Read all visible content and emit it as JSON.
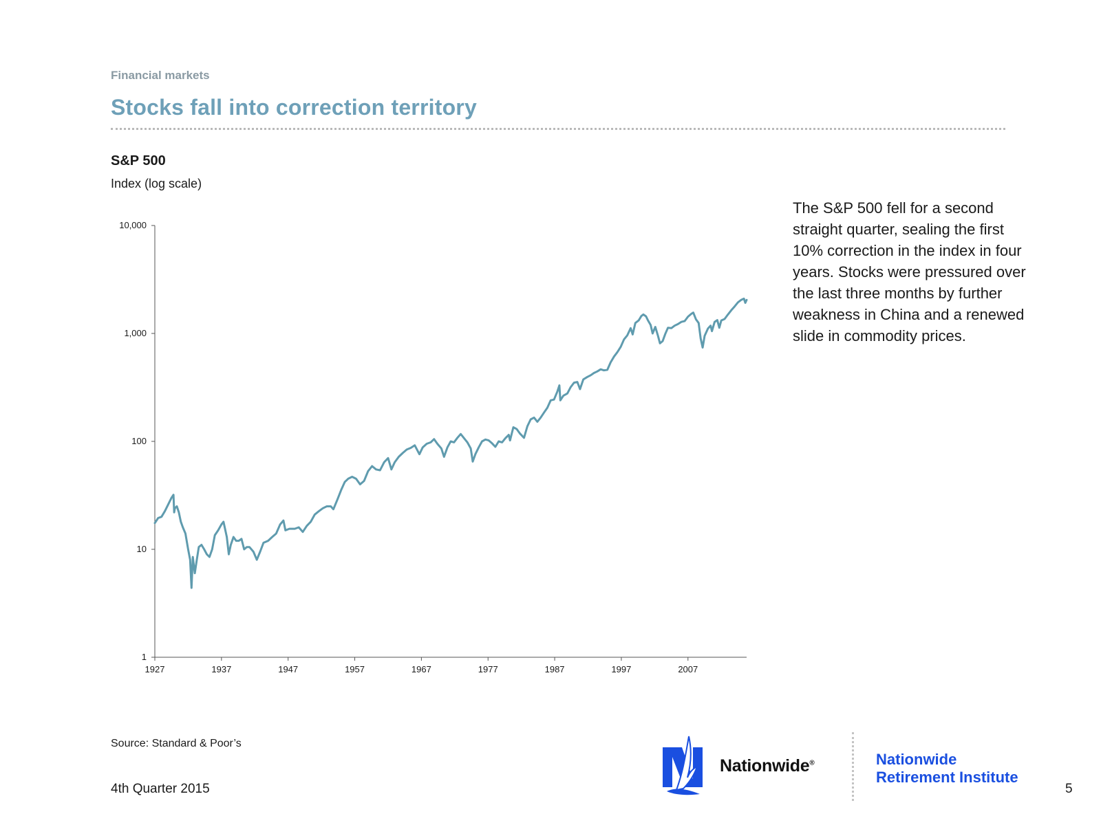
{
  "header": {
    "section": "Financial markets",
    "title": "Stocks fall into correction territory"
  },
  "commentary": "The S&P 500 fell for a second straight quarter, sealing the first 10% correction in the index in four years. Stocks were pressured over the last three months by further weakness in China and a renewed slide in commodity prices.",
  "footer": {
    "source": "Source: Standard & Poor’s",
    "date": "4th Quarter 2015",
    "page_number": "5",
    "brand_name": "Nationwide",
    "brand_mark": "®",
    "institute_line1": "Nationwide",
    "institute_line2": "Retirement Institute"
  },
  "colors": {
    "line": "#5f9bae",
    "title": "#6ea0b8",
    "section": "#8a9aa3",
    "brand_blue": "#1a4fe0"
  },
  "chart_data": {
    "type": "line",
    "title": "S&P 500",
    "ylabel": "Index (log scale)",
    "xlabel": "",
    "yscale": "log",
    "ylim": [
      1,
      10000
    ],
    "xlim": [
      1927,
      2015.8
    ],
    "yticks": [
      {
        "value": 1,
        "label": "1"
      },
      {
        "value": 10,
        "label": "10"
      },
      {
        "value": 100,
        "label": "100"
      },
      {
        "value": 1000,
        "label": "1,000"
      },
      {
        "value": 10000,
        "label": "10,000"
      }
    ],
    "xticks": [
      {
        "value": 1927,
        "label": "1927"
      },
      {
        "value": 1937,
        "label": "1937"
      },
      {
        "value": 1947,
        "label": "1947"
      },
      {
        "value": 1957,
        "label": "1957"
      },
      {
        "value": 1967,
        "label": "1967"
      },
      {
        "value": 1977,
        "label": "1977"
      },
      {
        "value": 1987,
        "label": "1987"
      },
      {
        "value": 1997,
        "label": "1997"
      },
      {
        "value": 2007,
        "label": "2007"
      }
    ],
    "grid": false,
    "series": [
      {
        "points": [
          [
            1927.0,
            17.5
          ],
          [
            1927.5,
            19.5
          ],
          [
            1928.0,
            20
          ],
          [
            1928.5,
            22.5
          ],
          [
            1929.0,
            26
          ],
          [
            1929.5,
            30
          ],
          [
            1929.8,
            32
          ],
          [
            1929.9,
            22
          ],
          [
            1930.0,
            24
          ],
          [
            1930.3,
            25
          ],
          [
            1930.6,
            22
          ],
          [
            1930.9,
            18
          ],
          [
            1931.2,
            16
          ],
          [
            1931.6,
            14
          ],
          [
            1932.0,
            10
          ],
          [
            1932.3,
            8
          ],
          [
            1932.5,
            4.4
          ],
          [
            1932.7,
            8.5
          ],
          [
            1933.0,
            6
          ],
          [
            1933.3,
            8
          ],
          [
            1933.6,
            10.5
          ],
          [
            1934.0,
            11
          ],
          [
            1934.4,
            10
          ],
          [
            1934.8,
            9
          ],
          [
            1935.2,
            8.5
          ],
          [
            1935.6,
            10
          ],
          [
            1936.0,
            13.5
          ],
          [
            1936.5,
            15
          ],
          [
            1937.0,
            17
          ],
          [
            1937.3,
            18
          ],
          [
            1937.8,
            13
          ],
          [
            1938.1,
            9
          ],
          [
            1938.4,
            11
          ],
          [
            1938.8,
            13
          ],
          [
            1939.2,
            12
          ],
          [
            1939.6,
            12
          ],
          [
            1940.0,
            12.5
          ],
          [
            1940.4,
            10
          ],
          [
            1940.8,
            10.5
          ],
          [
            1941.2,
            10.5
          ],
          [
            1941.8,
            9.5
          ],
          [
            1942.3,
            8
          ],
          [
            1942.8,
            9.5
          ],
          [
            1943.3,
            11.5
          ],
          [
            1944.0,
            12
          ],
          [
            1944.6,
            13
          ],
          [
            1945.2,
            14
          ],
          [
            1945.8,
            17
          ],
          [
            1946.3,
            18.5
          ],
          [
            1946.6,
            15
          ],
          [
            1947.2,
            15.5
          ],
          [
            1948.0,
            15.5
          ],
          [
            1948.6,
            16
          ],
          [
            1949.2,
            14.5
          ],
          [
            1949.8,
            16.5
          ],
          [
            1950.4,
            18
          ],
          [
            1951.0,
            21
          ],
          [
            1951.6,
            22.5
          ],
          [
            1952.2,
            24
          ],
          [
            1952.8,
            25
          ],
          [
            1953.4,
            25
          ],
          [
            1953.8,
            23.5
          ],
          [
            1954.4,
            29
          ],
          [
            1955.0,
            36
          ],
          [
            1955.5,
            42
          ],
          [
            1956.0,
            45
          ],
          [
            1956.6,
            47
          ],
          [
            1957.2,
            45
          ],
          [
            1957.8,
            40
          ],
          [
            1958.4,
            43
          ],
          [
            1959.0,
            53
          ],
          [
            1959.6,
            59
          ],
          [
            1960.2,
            55
          ],
          [
            1960.8,
            54
          ],
          [
            1961.4,
            64
          ],
          [
            1962.0,
            70
          ],
          [
            1962.5,
            55
          ],
          [
            1963.0,
            64
          ],
          [
            1963.6,
            72
          ],
          [
            1964.2,
            78
          ],
          [
            1964.8,
            84
          ],
          [
            1965.4,
            87
          ],
          [
            1966.0,
            92
          ],
          [
            1966.7,
            76
          ],
          [
            1967.2,
            88
          ],
          [
            1967.8,
            95
          ],
          [
            1968.4,
            98
          ],
          [
            1968.9,
            105
          ],
          [
            1969.4,
            95
          ],
          [
            1970.0,
            86
          ],
          [
            1970.4,
            72
          ],
          [
            1970.9,
            88
          ],
          [
            1971.4,
            100
          ],
          [
            1971.9,
            98
          ],
          [
            1972.4,
            108
          ],
          [
            1972.9,
            117
          ],
          [
            1973.4,
            107
          ],
          [
            1973.9,
            98
          ],
          [
            1974.4,
            86
          ],
          [
            1974.7,
            65
          ],
          [
            1975.1,
            76
          ],
          [
            1975.6,
            88
          ],
          [
            1976.1,
            100
          ],
          [
            1976.6,
            104
          ],
          [
            1977.1,
            102
          ],
          [
            1977.6,
            96
          ],
          [
            1978.1,
            89
          ],
          [
            1978.6,
            100
          ],
          [
            1979.1,
            98
          ],
          [
            1979.6,
            107
          ],
          [
            1980.1,
            115
          ],
          [
            1980.3,
            102
          ],
          [
            1980.8,
            135
          ],
          [
            1981.3,
            130
          ],
          [
            1981.8,
            118
          ],
          [
            1982.4,
            108
          ],
          [
            1982.9,
            138
          ],
          [
            1983.4,
            160
          ],
          [
            1983.9,
            166
          ],
          [
            1984.4,
            152
          ],
          [
            1984.9,
            166
          ],
          [
            1985.4,
            185
          ],
          [
            1985.9,
            205
          ],
          [
            1986.4,
            240
          ],
          [
            1986.9,
            244
          ],
          [
            1987.4,
            290
          ],
          [
            1987.7,
            330
          ],
          [
            1987.85,
            240
          ],
          [
            1988.3,
            265
          ],
          [
            1988.9,
            278
          ],
          [
            1989.4,
            318
          ],
          [
            1989.9,
            350
          ],
          [
            1990.4,
            355
          ],
          [
            1990.8,
            305
          ],
          [
            1991.3,
            375
          ],
          [
            1991.9,
            395
          ],
          [
            1992.4,
            410
          ],
          [
            1992.9,
            430
          ],
          [
            1993.4,
            445
          ],
          [
            1993.9,
            465
          ],
          [
            1994.4,
            455
          ],
          [
            1994.9,
            460
          ],
          [
            1995.4,
            540
          ],
          [
            1995.9,
            610
          ],
          [
            1996.4,
            670
          ],
          [
            1996.9,
            750
          ],
          [
            1997.4,
            880
          ],
          [
            1997.9,
            960
          ],
          [
            1998.4,
            1120
          ],
          [
            1998.7,
            980
          ],
          [
            1999.1,
            1250
          ],
          [
            1999.6,
            1320
          ],
          [
            2000.0,
            1450
          ],
          [
            2000.3,
            1500
          ],
          [
            2000.7,
            1440
          ],
          [
            2001.0,
            1320
          ],
          [
            2001.4,
            1200
          ],
          [
            2001.7,
            1000
          ],
          [
            2002.1,
            1150
          ],
          [
            2002.5,
            950
          ],
          [
            2002.8,
            810
          ],
          [
            2003.2,
            850
          ],
          [
            2003.6,
            990
          ],
          [
            2004.0,
            1130
          ],
          [
            2004.5,
            1120
          ],
          [
            2005.0,
            1180
          ],
          [
            2005.5,
            1220
          ],
          [
            2006.0,
            1280
          ],
          [
            2006.5,
            1300
          ],
          [
            2007.0,
            1430
          ],
          [
            2007.5,
            1520
          ],
          [
            2007.8,
            1560
          ],
          [
            2008.2,
            1350
          ],
          [
            2008.6,
            1250
          ],
          [
            2008.9,
            900
          ],
          [
            2009.2,
            740
          ],
          [
            2009.5,
            950
          ],
          [
            2010.0,
            1110
          ],
          [
            2010.4,
            1180
          ],
          [
            2010.6,
            1050
          ],
          [
            2011.0,
            1280
          ],
          [
            2011.4,
            1330
          ],
          [
            2011.7,
            1130
          ],
          [
            2012.0,
            1320
          ],
          [
            2012.5,
            1360
          ],
          [
            2013.0,
            1500
          ],
          [
            2013.5,
            1640
          ],
          [
            2014.0,
            1780
          ],
          [
            2014.5,
            1940
          ],
          [
            2015.0,
            2050
          ],
          [
            2015.4,
            2100
          ],
          [
            2015.6,
            1920
          ],
          [
            2015.8,
            2043
          ]
        ]
      }
    ]
  }
}
